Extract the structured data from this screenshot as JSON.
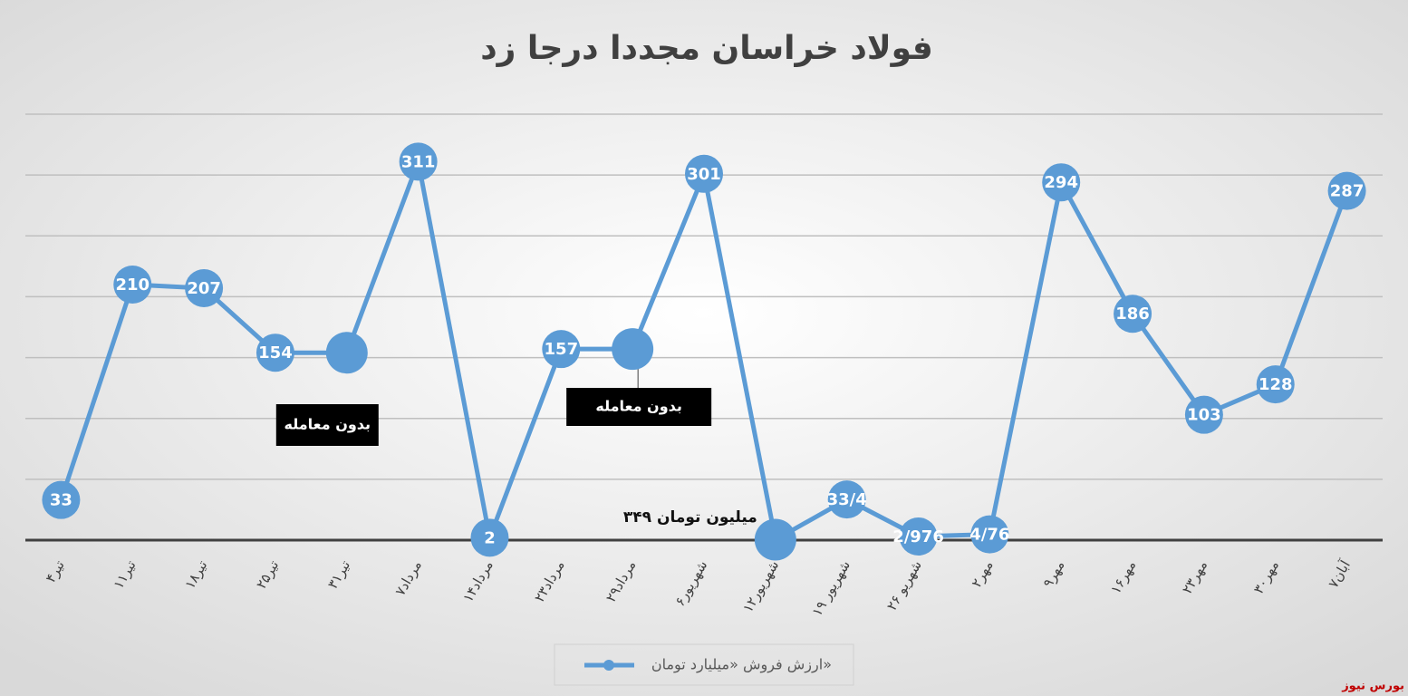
{
  "chart_data": {
    "type": "line",
    "title": "فولاد خراسان مجددا درجا زد",
    "categories": [
      "۴تیر",
      "۱۱تیر",
      "۱۸تیر",
      "۲۵تیر",
      "۳۱تیر",
      "۷مرداد",
      "۱۴مرداد",
      "۲۳مرداد",
      "۲۹مرداد",
      "۶شهریور",
      "۱۲شهریور",
      "۱۹ شهریور",
      "۲۶ شهریو",
      "۲مهر",
      "۹مهر",
      "۱۶مهر",
      "۲۳مهر",
      "۳۰مهر",
      "۷آبان"
    ],
    "series": [
      {
        "name": "ارزش فروش «میلیارد تومان»",
        "color": "#5b9bd5",
        "values": [
          33,
          210,
          207,
          154,
          154,
          311,
          2,
          157,
          157,
          301,
          0.349,
          33.4,
          2.976,
          4.76,
          294,
          186,
          103,
          128,
          287
        ],
        "value_labels": [
          "33",
          "210",
          "207",
          "154",
          null,
          "311",
          "2",
          "157",
          null,
          "301",
          null,
          "33/4",
          "2/976",
          "4/76",
          "294",
          "186",
          "103",
          "128",
          "287"
        ]
      }
    ],
    "ylim": [
      0,
      350
    ],
    "yticks": [
      0,
      50,
      100,
      150,
      200,
      250,
      300,
      350
    ],
    "grid": true,
    "annotations": [
      {
        "text": "بدون معامله",
        "index": 4
      },
      {
        "text": "بدون معامله",
        "index": 8
      },
      {
        "text": "۳۴۹ میلیون تومان",
        "index": 10
      }
    ],
    "legend": "bottom",
    "source": "بورس نیوز"
  }
}
